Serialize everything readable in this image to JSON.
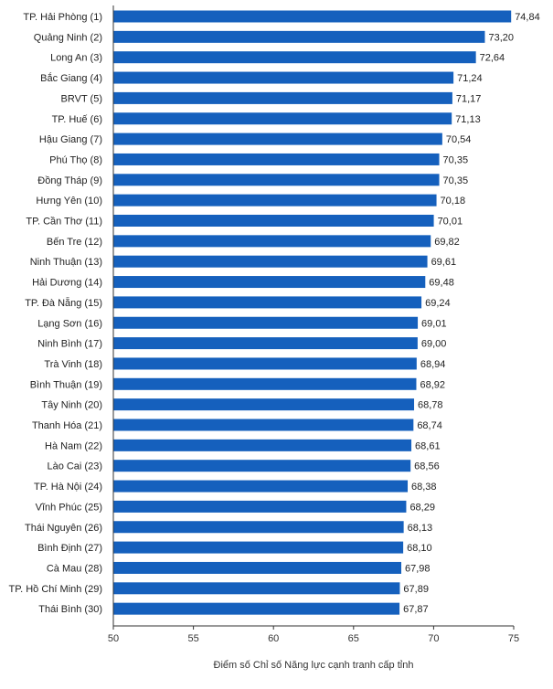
{
  "chart_data": {
    "type": "bar",
    "orientation": "horizontal",
    "categories": [
      "TP. Hải Phòng (1)",
      "Quảng Ninh (2)",
      "Long An (3)",
      "Bắc Giang (4)",
      "BRVT (5)",
      "TP. Huế (6)",
      "Hậu Giang (7)",
      "Phú Thọ (8)",
      "Đồng Tháp (9)",
      "Hưng Yên (10)",
      "TP. Cần Thơ (11)",
      "Bến Tre (12)",
      "Ninh Thuận (13)",
      "Hải Dương (14)",
      "TP. Đà Nẵng (15)",
      "Lạng Sơn (16)",
      "Ninh Bình (17)",
      "Trà Vinh (18)",
      "Bình Thuận (19)",
      "Tây Ninh (20)",
      "Thanh Hóa (21)",
      "Hà Nam (22)",
      "Lào Cai (23)",
      "TP. Hà Nội (24)",
      "Vĩnh Phúc (25)",
      "Thái Nguyên (26)",
      "Bình Định (27)",
      "Cà Mau (28)",
      "TP. Hồ Chí Minh (29)",
      "Thái Bình (30)"
    ],
    "values": [
      74.84,
      73.2,
      72.64,
      71.24,
      71.17,
      71.13,
      70.54,
      70.35,
      70.35,
      70.18,
      70.01,
      69.82,
      69.61,
      69.48,
      69.24,
      69.01,
      69.0,
      68.94,
      68.92,
      68.78,
      68.74,
      68.61,
      68.56,
      68.38,
      68.29,
      68.13,
      68.1,
      67.98,
      67.89,
      67.87
    ],
    "value_labels": [
      "74,84",
      "73,20",
      "72,64",
      "71,24",
      "71,17",
      "71,13",
      "70,54",
      "70,35",
      "70,35",
      "70,18",
      "70,01",
      "69,82",
      "69,61",
      "69,48",
      "69,24",
      "69,01",
      "69,00",
      "68,94",
      "68,92",
      "68,78",
      "68,74",
      "68,61",
      "68,56",
      "68,38",
      "68,29",
      "68,13",
      "68,10",
      "67,98",
      "67,89",
      "67,87"
    ],
    "xlabel": "Điểm số Chỉ số Năng lực cạnh tranh cấp tỉnh",
    "ylabel": "",
    "xlim": [
      50,
      75
    ],
    "xticks": [
      "50",
      "55",
      "60",
      "65",
      "70",
      "75"
    ],
    "grid": false,
    "bar_color": "#1560bd",
    "text_color": "#222222",
    "axis_color": "#333333"
  }
}
